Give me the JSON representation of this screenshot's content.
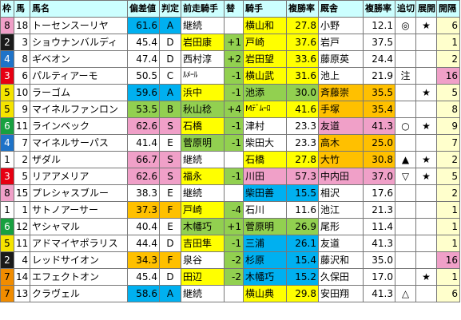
{
  "headers": [
    "枠",
    "馬",
    "馬名",
    "偏差値",
    "判定",
    "前走騎手",
    "替",
    "騎手",
    "複勝率",
    "厩舎",
    "複勝率",
    "追切",
    "展開",
    "開隔"
  ],
  "colors": {
    "frame": {
      "1": "#ffffff",
      "2": "#1a1a1a",
      "3": "#e60012",
      "4": "#1e73c8",
      "5": "#f5e400",
      "6": "#18a040",
      "7": "#f08c00",
      "8": "#f0a0c8"
    },
    "frame_text": {
      "1": "#000000",
      "2": "#ffffff",
      "3": "#ffffff",
      "4": "#ffffff",
      "5": "#000000",
      "6": "#ffffff",
      "7": "#000000",
      "8": "#000000"
    },
    "grade": {
      "S": "#f0a0c8",
      "A": "#00b0f0",
      "B": "#92d050",
      "C": "#ffffff",
      "D": "#ffffff",
      "F": "#ffc000"
    },
    "jockey": {
      "yellow": "#ffff00",
      "green": "#92d050",
      "blue": "#00b0f0",
      "orange": "#ffc000",
      "pink": "#f0a0c8",
      "white": "#ffffff"
    },
    "stable": {
      "yellow": "#ffff00",
      "orange": "#ffc000",
      "pink": "#f0a0c8",
      "white": "#ffffff"
    },
    "kai": {
      "pink": "#f0a0c8",
      "yellow": "#ffffcc",
      "white": "#ffffff"
    },
    "header_bg": "#ccffff",
    "change_bg": "#92d050"
  },
  "rows": [
    {
      "frame": "8",
      "num": "18",
      "name": "トーセンスーリヤ",
      "dev": "61.6",
      "grade": "A",
      "prev": "継続",
      "prev_c": "white",
      "chg": "",
      "jockey": "横山和",
      "jockey_c": "yellow",
      "jrate": "27.8",
      "stable": "小野",
      "stable_c": "white",
      "srate": "12.1",
      "oi": "◎",
      "ten": "★",
      "kai": "6",
      "kai_c": "yellow"
    },
    {
      "frame": "2",
      "num": "3",
      "name": "ショウナンバルディ",
      "dev": "45.4",
      "grade": "D",
      "prev": "岩田康",
      "prev_c": "yellow",
      "chg": "+1",
      "jockey": "戸崎",
      "jockey_c": "yellow",
      "jrate": "37.6",
      "stable": "岩戸",
      "stable_c": "white",
      "srate": "37.5",
      "oi": "",
      "ten": "",
      "kai": "1",
      "kai_c": "yellow"
    },
    {
      "frame": "4",
      "num": "8",
      "name": "ギベオン",
      "dev": "47.4",
      "grade": "D",
      "prev": "西村淳",
      "prev_c": "white",
      "chg": "+2",
      "jockey": "岩田望",
      "jockey_c": "yellow",
      "jrate": "33.6",
      "stable": "藤原英",
      "stable_c": "white",
      "srate": "24.4",
      "oi": "",
      "ten": "",
      "kai": "2",
      "kai_c": "yellow"
    },
    {
      "frame": "3",
      "num": "6",
      "name": "パルティアーモ",
      "dev": "50.5",
      "grade": "C",
      "prev": "ﾙﾒｰﾙ",
      "prev_c": "white",
      "chg": "-1",
      "jockey": "横山武",
      "jockey_c": "yellow",
      "jrate": "31.6",
      "stable": "池上",
      "stable_c": "white",
      "srate": "21.9",
      "oi": "注",
      "ten": "",
      "kai": "16",
      "kai_c": "pink"
    },
    {
      "frame": "5",
      "num": "10",
      "name": "ラーゴム",
      "dev": "59.6",
      "grade": "A",
      "prev": "浜中",
      "prev_c": "yellow",
      "chg": "-1",
      "jockey": "池添",
      "jockey_c": "green",
      "jrate": "30.0",
      "stable": "斉藤崇",
      "stable_c": "orange",
      "srate": "35.5",
      "oi": "",
      "ten": "★",
      "kai": "5",
      "kai_c": "yellow"
    },
    {
      "frame": "5",
      "num": "9",
      "name": "マイネルファンロン",
      "dev": "53.5",
      "grade": "B",
      "prev": "秋山稔",
      "prev_c": "green",
      "chg": "+4",
      "jockey": "Mﾃﾞﾑｰﾛ",
      "jockey_c": "yellow",
      "jrate": "41.6",
      "stable": "手塚",
      "stable_c": "orange",
      "srate": "35.4",
      "oi": "",
      "ten": "",
      "kai": "8",
      "kai_c": "yellow"
    },
    {
      "frame": "6",
      "num": "11",
      "name": "ラインベック",
      "dev": "62.6",
      "grade": "S",
      "prev": "石橋",
      "prev_c": "yellow",
      "chg": "-1",
      "jockey": "津村",
      "jockey_c": "white",
      "jrate": "23.3",
      "stable": "友道",
      "stable_c": "pink",
      "srate": "41.3",
      "oi": "○",
      "ten": "★",
      "kai": "9",
      "kai_c": "yellow"
    },
    {
      "frame": "4",
      "num": "7",
      "name": "マイネルサーパス",
      "dev": "41.4",
      "grade": "E",
      "prev": "菅原明",
      "prev_c": "green",
      "chg": "-1",
      "jockey": "柴田大",
      "jockey_c": "white",
      "jrate": "23.3",
      "stable": "高木",
      "stable_c": "orange",
      "srate": "25.0",
      "oi": "",
      "ten": "",
      "kai": "7",
      "kai_c": "yellow"
    },
    {
      "frame": "1",
      "num": "2",
      "name": "ザダル",
      "dev": "66.7",
      "grade": "S",
      "prev": "継続",
      "prev_c": "white",
      "chg": "",
      "jockey": "石橋",
      "jockey_c": "yellow",
      "jrate": "27.8",
      "stable": "大竹",
      "stable_c": "orange",
      "srate": "30.8",
      "oi": "▲",
      "ten": "★",
      "kai": "2",
      "kai_c": "yellow"
    },
    {
      "frame": "3",
      "num": "5",
      "name": "リアアメリア",
      "dev": "62.6",
      "grade": "S",
      "prev": "福永",
      "prev_c": "yellow",
      "chg": "-1",
      "jockey": "川田",
      "jockey_c": "pink",
      "jrate": "57.3",
      "stable": "中内田",
      "stable_c": "pink",
      "srate": "37.0",
      "oi": "▽",
      "ten": "★",
      "kai": "5",
      "kai_c": "yellow"
    },
    {
      "frame": "8",
      "num": "15",
      "name": "プレシャスブルー",
      "dev": "38.3",
      "grade": "E",
      "prev": "継続",
      "prev_c": "white",
      "chg": "",
      "jockey": "柴田善",
      "jockey_c": "blue",
      "jrate": "15.5",
      "stable": "相沢",
      "stable_c": "white",
      "srate": "17.6",
      "oi": "",
      "ten": "",
      "kai": "2",
      "kai_c": "yellow"
    },
    {
      "frame": "1",
      "num": "1",
      "name": "サトノアーサー",
      "dev": "37.3",
      "grade": "F",
      "prev": "戸崎",
      "prev_c": "yellow",
      "chg": "-4",
      "jockey": "石川",
      "jockey_c": "white",
      "jrate": "11.6",
      "stable": "池江",
      "stable_c": "white",
      "srate": "21.3",
      "oi": "",
      "ten": "",
      "kai": "1",
      "kai_c": "yellow"
    },
    {
      "frame": "6",
      "num": "12",
      "name": "ヤシャマル",
      "dev": "40.4",
      "grade": "E",
      "prev": "木幡巧",
      "prev_c": "green",
      "chg": "+1",
      "jockey": "菅原明",
      "jockey_c": "green",
      "jrate": "26.9",
      "stable": "尾形",
      "stable_c": "white",
      "srate": "11.4",
      "oi": "",
      "ten": "",
      "kai": "1",
      "kai_c": "yellow"
    },
    {
      "frame": "5",
      "num": "11",
      "name": "アドマイヤポラリス",
      "dev": "44.4",
      "grade": "D",
      "prev": "吉田隼",
      "prev_c": "yellow",
      "chg": "-1",
      "jockey": "三浦",
      "jockey_c": "blue",
      "jrate": "26.1",
      "stable": "友道",
      "stable_c": "white",
      "srate": "41.3",
      "oi": "",
      "ten": "",
      "kai": "1",
      "kai_c": "yellow"
    },
    {
      "frame": "2",
      "num": "4",
      "name": "レッドサイオン",
      "dev": "34.3",
      "grade": "F",
      "prev": "泉谷",
      "prev_c": "white",
      "chg": "-2",
      "jockey": "杉原",
      "jockey_c": "blue",
      "jrate": "15.4",
      "stable": "藤沢和",
      "stable_c": "white",
      "srate": "35.0",
      "oi": "",
      "ten": "",
      "kai": "16",
      "kai_c": "pink"
    },
    {
      "frame": "7",
      "num": "14",
      "name": "エフェクトオン",
      "dev": "45.4",
      "grade": "D",
      "prev": "田辺",
      "prev_c": "yellow",
      "chg": "-2",
      "jockey": "木幡巧",
      "jockey_c": "blue",
      "jrate": "15.2",
      "stable": "久保田",
      "stable_c": "white",
      "srate": "17.0",
      "oi": "",
      "ten": "★",
      "kai": "1",
      "kai_c": "yellow"
    },
    {
      "frame": "7",
      "num": "13",
      "name": "クラヴェル",
      "dev": "58.6",
      "grade": "A",
      "prev": "継続",
      "prev_c": "white",
      "chg": "",
      "jockey": "横山典",
      "jockey_c": "yellow",
      "jrate": "29.8",
      "stable": "安田翔",
      "stable_c": "white",
      "srate": "41.3",
      "oi": "△",
      "ten": "",
      "kai": "6",
      "kai_c": "yellow"
    }
  ]
}
